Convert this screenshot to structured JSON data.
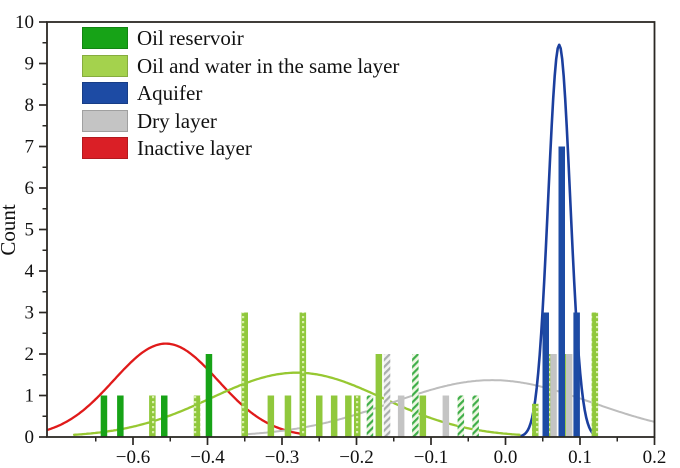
{
  "legend": {
    "items": [
      {
        "label": "Oil reservoir",
        "style": "solid",
        "color": "#17a317"
      },
      {
        "label": "Oil and water in the same layer",
        "style": "lightgreen-hatch",
        "color": "#a4d24d"
      },
      {
        "label": "Aquifer",
        "style": "solid",
        "color": "#1d4ba4"
      },
      {
        "label": "Dry layer",
        "style": "solid",
        "color": "#c4c4c4"
      },
      {
        "label": "Inactive layer",
        "style": "solid",
        "color": "#da1f26"
      }
    ]
  },
  "chart_data": {
    "type": "bar",
    "title": "",
    "xlabel": "",
    "ylabel": "Count",
    "y_axis": {
      "label": "Count",
      "min": 0,
      "max": 10,
      "major_step": 1,
      "minor_step": 0.5,
      "tick_labels": [
        "0",
        "1",
        "2",
        "3",
        "4",
        "5",
        "6",
        "7",
        "8",
        "9",
        "10"
      ]
    },
    "x_axis": {
      "tick_labels": [
        "−0.6",
        "−0.4",
        "−0.3",
        "−0.2",
        "−0.1",
        "0.0",
        "0.1",
        "0.2"
      ],
      "minor_ticks_between_majors": true
    },
    "colors": {
      "oil_reservoir": "#17a317",
      "oil_water": "#90c83c",
      "oil_water_dot_accent": "#d9eeac",
      "oil_water_hatch": "#3fae49",
      "oil_water_hatch_bg": "#eff7e3",
      "aquifer": "#1d4ba4",
      "dry_layer": "#c4c4c4",
      "dry_hatch": "#a9aeae",
      "dry_hatch_bg": "#f2f2f2",
      "inactive_layer": "#e01a1a",
      "axis": "#2b2824"
    },
    "bars": [
      {
        "x": -0.539,
        "count": 1,
        "series": "oil_reservoir",
        "pattern": "solid"
      },
      {
        "x": -0.517,
        "count": 1,
        "series": "oil_reservoir",
        "pattern": "solid"
      },
      {
        "x": -0.474,
        "count": 1,
        "series": "oil_water",
        "pattern": "dots"
      },
      {
        "x": -0.458,
        "count": 1,
        "series": "oil_reservoir",
        "pattern": "solid"
      },
      {
        "x": -0.414,
        "count": 1,
        "series": "oil_water",
        "pattern": "dots"
      },
      {
        "x": -0.398,
        "count": 2,
        "series": "oil_reservoir",
        "pattern": "solid"
      },
      {
        "x": -0.35,
        "count": 3,
        "series": "oil_water",
        "pattern": "dots"
      },
      {
        "x": -0.315,
        "count": 1,
        "series": "oil_water",
        "pattern": "solid"
      },
      {
        "x": -0.292,
        "count": 1,
        "series": "oil_water",
        "pattern": "solid"
      },
      {
        "x": -0.272,
        "count": 3,
        "series": "oil_water",
        "pattern": "dots"
      },
      {
        "x": -0.25,
        "count": 1,
        "series": "oil_water",
        "pattern": "solid"
      },
      {
        "x": -0.23,
        "count": 1,
        "series": "oil_water",
        "pattern": "solid"
      },
      {
        "x": -0.211,
        "count": 1,
        "series": "oil_water",
        "pattern": "solid"
      },
      {
        "x": -0.199,
        "count": 1,
        "series": "oil_water",
        "pattern": "dots"
      },
      {
        "x": -0.182,
        "count": 1,
        "series": "oil_water",
        "pattern": "hatch"
      },
      {
        "x": -0.17,
        "count": 2,
        "series": "oil_water",
        "pattern": "solid"
      },
      {
        "x": -0.159,
        "count": 2,
        "series": "dry_layer",
        "pattern": "hatch"
      },
      {
        "x": -0.14,
        "count": 1,
        "series": "dry_layer",
        "pattern": "solid"
      },
      {
        "x": -0.121,
        "count": 2,
        "series": "oil_water",
        "pattern": "hatch"
      },
      {
        "x": -0.111,
        "count": 1,
        "series": "oil_water",
        "pattern": "solid"
      },
      {
        "x": -0.08,
        "count": 1,
        "series": "dry_layer",
        "pattern": "solid"
      },
      {
        "x": -0.06,
        "count": 1,
        "series": "oil_water",
        "pattern": "hatch"
      },
      {
        "x": -0.04,
        "count": 1,
        "series": "oil_water",
        "pattern": "hatch"
      },
      {
        "x": 0.04,
        "count": 0.8,
        "series": "oil_water",
        "pattern": "dots"
      },
      {
        "x": 0.0605,
        "count": 2,
        "series": "oil_water",
        "pattern": "dots"
      },
      {
        "x": 0.054,
        "count": 3,
        "series": "aquifer",
        "pattern": "solid"
      },
      {
        "x": 0.0645,
        "count": 2,
        "series": "dry_layer",
        "pattern": "solid"
      },
      {
        "x": 0.0815,
        "count": 2,
        "series": "oil_water",
        "pattern": "dots"
      },
      {
        "x": 0.0755,
        "count": 7,
        "series": "aquifer",
        "pattern": "solid"
      },
      {
        "x": 0.0855,
        "count": 2,
        "series": "dry_layer",
        "pattern": "solid"
      },
      {
        "x": 0.0955,
        "count": 3,
        "series": "aquifer",
        "pattern": "solid"
      },
      {
        "x": 0.12,
        "count": 3,
        "series": "oil_water",
        "pattern": "dots"
      }
    ],
    "curves": [
      {
        "series": "inactive-layer",
        "color": "#e01a1a",
        "center": -0.456,
        "sigma": 0.07,
        "peak": 2.25,
        "span_sigma": 2.6,
        "width": 2.3
      },
      {
        "series": "oil-and-water",
        "color": "#97c832",
        "center": -0.28,
        "sigma": 0.115,
        "peak": 1.55,
        "span_sigma": 2.6,
        "width": 2.3
      },
      {
        "series": "dry-layer",
        "color": "#bdbdbd",
        "center": -0.018,
        "sigma": 0.134,
        "peak": 1.37,
        "span_sigma": 2.5,
        "width": 2.0
      },
      {
        "series": "aquifer",
        "color": "#1b3f9e",
        "center": 0.072,
        "sigma": 0.0148,
        "peak": 9.45,
        "span_sigma": 3.4,
        "width": 2.6
      }
    ]
  }
}
